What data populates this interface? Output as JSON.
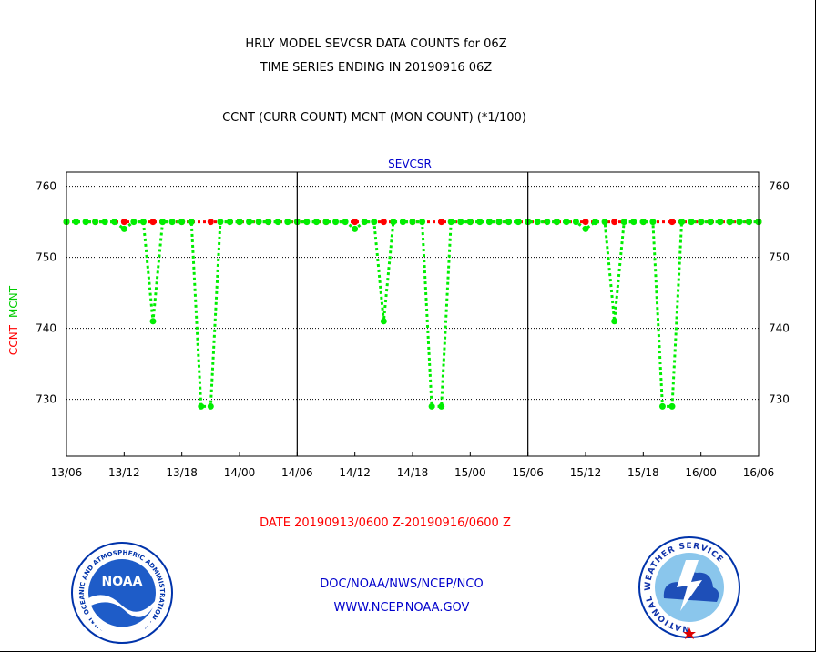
{
  "chart_data": {
    "type": "line",
    "title_lines": [
      "HRLY MODEL SEVCSR DATA COUNTS for 06Z",
      "TIME SERIES ENDING IN 20190916 06Z"
    ],
    "subtitle": "CCNT (CURR COUNT) MCNT (MON COUNT) (*1/100)",
    "panel_label": "SEVCSR",
    "ylabel_parts": [
      {
        "text": "CCNT",
        "color": "#ff0000"
      },
      {
        "text": "MCNT",
        "color": "#00cc00"
      }
    ],
    "date_range": "DATE 20190913/0600 Z-20190916/0600 Z",
    "ylim": [
      722,
      762
    ],
    "yticks": [
      730,
      740,
      750,
      760
    ],
    "xlim": [
      0,
      72
    ],
    "xtick_labels": [
      "13/06",
      "13/12",
      "13/18",
      "14/00",
      "14/06",
      "14/12",
      "14/18",
      "15/00",
      "15/06",
      "15/12",
      "15/18",
      "16/00",
      "16/06"
    ],
    "panel_dividers": [
      24,
      48
    ],
    "grid": true,
    "series": [
      {
        "name": "CCNT",
        "color": "#ff0000",
        "marker_every": 3,
        "values": [
          755,
          755,
          755,
          755,
          755,
          755,
          755,
          755,
          755,
          755,
          755,
          755,
          755,
          755,
          755,
          755,
          755,
          755,
          755,
          755,
          755,
          755,
          755,
          755,
          755,
          755,
          755,
          755,
          755,
          755,
          755,
          755,
          755,
          755,
          755,
          755,
          755,
          755,
          755,
          755,
          755,
          755,
          755,
          755,
          755,
          755,
          755,
          755,
          755,
          755,
          755,
          755,
          755,
          755,
          755,
          755,
          755,
          755,
          755,
          755,
          755,
          755,
          755,
          755,
          755,
          755,
          755,
          755,
          755,
          755,
          755,
          755,
          755
        ]
      },
      {
        "name": "MCNT",
        "color": "#00ee00",
        "marker_every": 1,
        "values": [
          755,
          755,
          755,
          755,
          755,
          755,
          754,
          755,
          755,
          741,
          755,
          755,
          755,
          755,
          729,
          729,
          755,
          755,
          755,
          755,
          755,
          755,
          755,
          755,
          755,
          755,
          755,
          755,
          755,
          755,
          754,
          755,
          755,
          741,
          755,
          755,
          755,
          755,
          729,
          729,
          755,
          755,
          755,
          755,
          755,
          755,
          755,
          755,
          755,
          755,
          755,
          755,
          755,
          755,
          754,
          755,
          755,
          741,
          755,
          755,
          755,
          755,
          729,
          729,
          755,
          755,
          755,
          755,
          755,
          755,
          755,
          755,
          755
        ]
      }
    ]
  },
  "footer": {
    "line1": "DOC/NOAA/NWS/NCEP/NCO",
    "line2": "WWW.NCEP.NOAA.GOV"
  },
  "logos": {
    "noaa": {
      "center_text": "NOAA",
      "ring_text": "NATIONAL OCEANIC AND ATMOSPHERIC ADMINISTRATION · U.S. DEPARTMENT OF COMMERCE"
    },
    "nws": {
      "ring_text": "NATIONAL WEATHER SERVICE"
    }
  },
  "colors": {
    "red": "#ff0000",
    "green": "#00ee00",
    "blue": "#0000cc"
  }
}
